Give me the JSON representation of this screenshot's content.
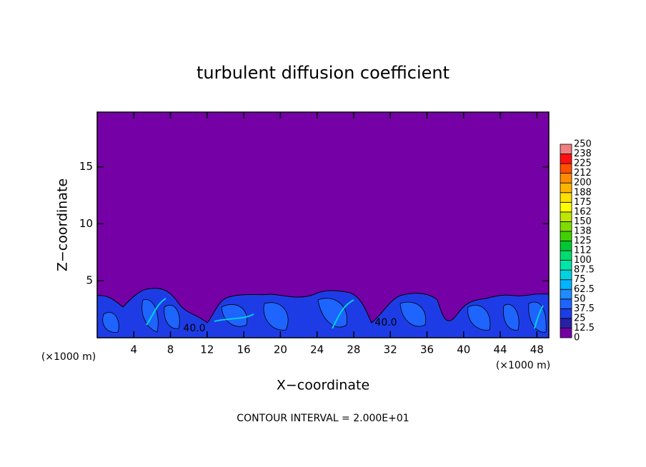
{
  "chart_data": {
    "type": "contour",
    "title": "turbulent diffusion coefficient",
    "x_label": "X−coordinate",
    "y_label": "Z−coordinate",
    "x_unit": "(×1000 m)",
    "y_unit": "(×1000 m)",
    "note": "CONTOUR INTERVAL = 2.000E+01",
    "contour_labels": [
      "40.0",
      "40.0"
    ],
    "xlim": [
      0,
      49.3
    ],
    "xticks": [
      4,
      8,
      12,
      16,
      20,
      24,
      28,
      32,
      36,
      40,
      44,
      48
    ],
    "ylim": [
      0,
      19.8
    ],
    "yticks": [
      5,
      10,
      15
    ],
    "background_color": "#7400a6",
    "colorbar": {
      "lim": [
        0,
        250
      ],
      "ticks": [
        0,
        12.5,
        25,
        37.5,
        50,
        62.5,
        75,
        87.5,
        100,
        {
          "value": 112.5,
          "label": "112"
        },
        125,
        {
          "value": 137.5,
          "label": "138"
        },
        150,
        {
          "value": 162.5,
          "label": "162"
        },
        175,
        {
          "value": 187.5,
          "label": "188"
        },
        200,
        {
          "value": 212.5,
          "label": "212"
        },
        225,
        {
          "value": 237.5,
          "label": "238"
        },
        250
      ],
      "colors": [
        "#7400a6",
        "#2a20a8",
        "#1e3ce6",
        "#1e64ff",
        "#1e8cff",
        "#00b4ff",
        "#00d2e0",
        "#00e6a8",
        "#00dc6e",
        "#00c832",
        "#40d200",
        "#80dc00",
        "#c0e600",
        "#ffff00",
        "#ffe000",
        "#ffb400",
        "#ff8c00",
        "#ff5000",
        "#ff1010",
        "#f08080"
      ]
    }
  }
}
